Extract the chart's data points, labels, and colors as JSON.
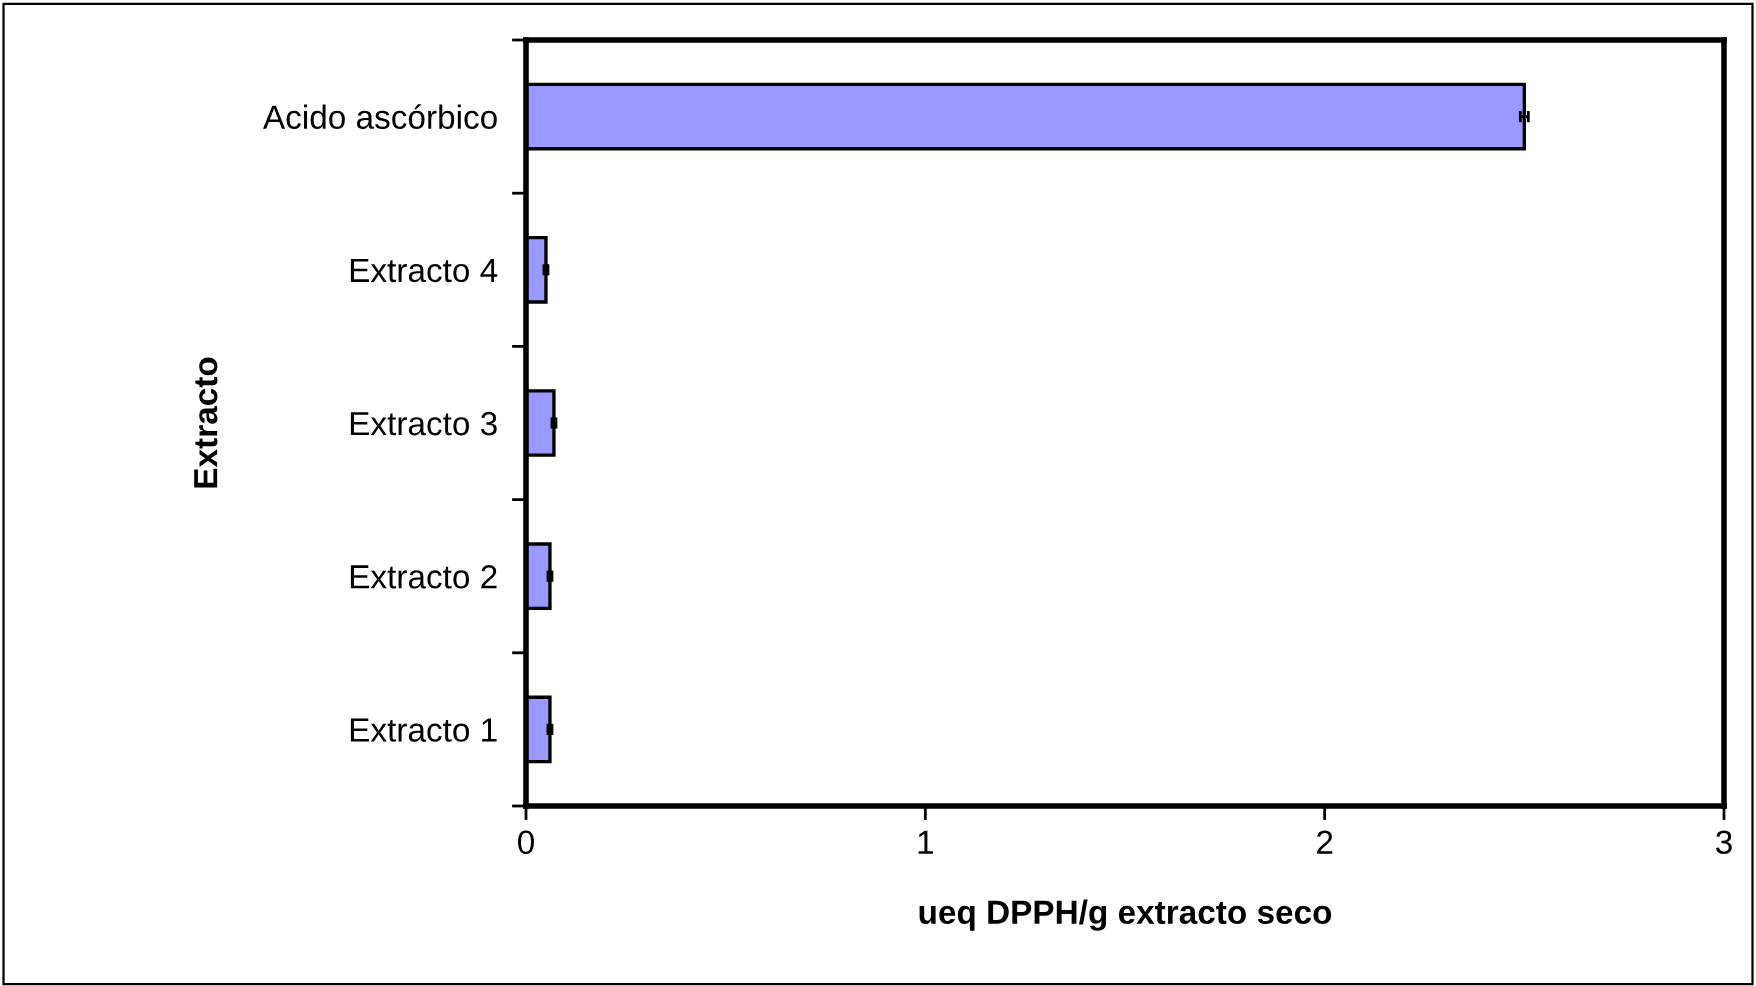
{
  "chart_data": {
    "type": "bar",
    "orientation": "horizontal",
    "xlabel": "ueq DPPH/g extracto seco",
    "ylabel": "Extracto",
    "categories": [
      "Acido ascórbico",
      "Extracto 4",
      "Extracto 3",
      "Extracto 2",
      "Extracto 1"
    ],
    "values": [
      2.5,
      0.05,
      0.07,
      0.06,
      0.06
    ],
    "errors": [
      0.01,
      0.005,
      0.005,
      0.005,
      0.005
    ],
    "color": "#9999ff",
    "xlim": [
      0,
      3
    ],
    "xticks": [
      0,
      1,
      2,
      3
    ],
    "grid": false,
    "legend": false
  }
}
